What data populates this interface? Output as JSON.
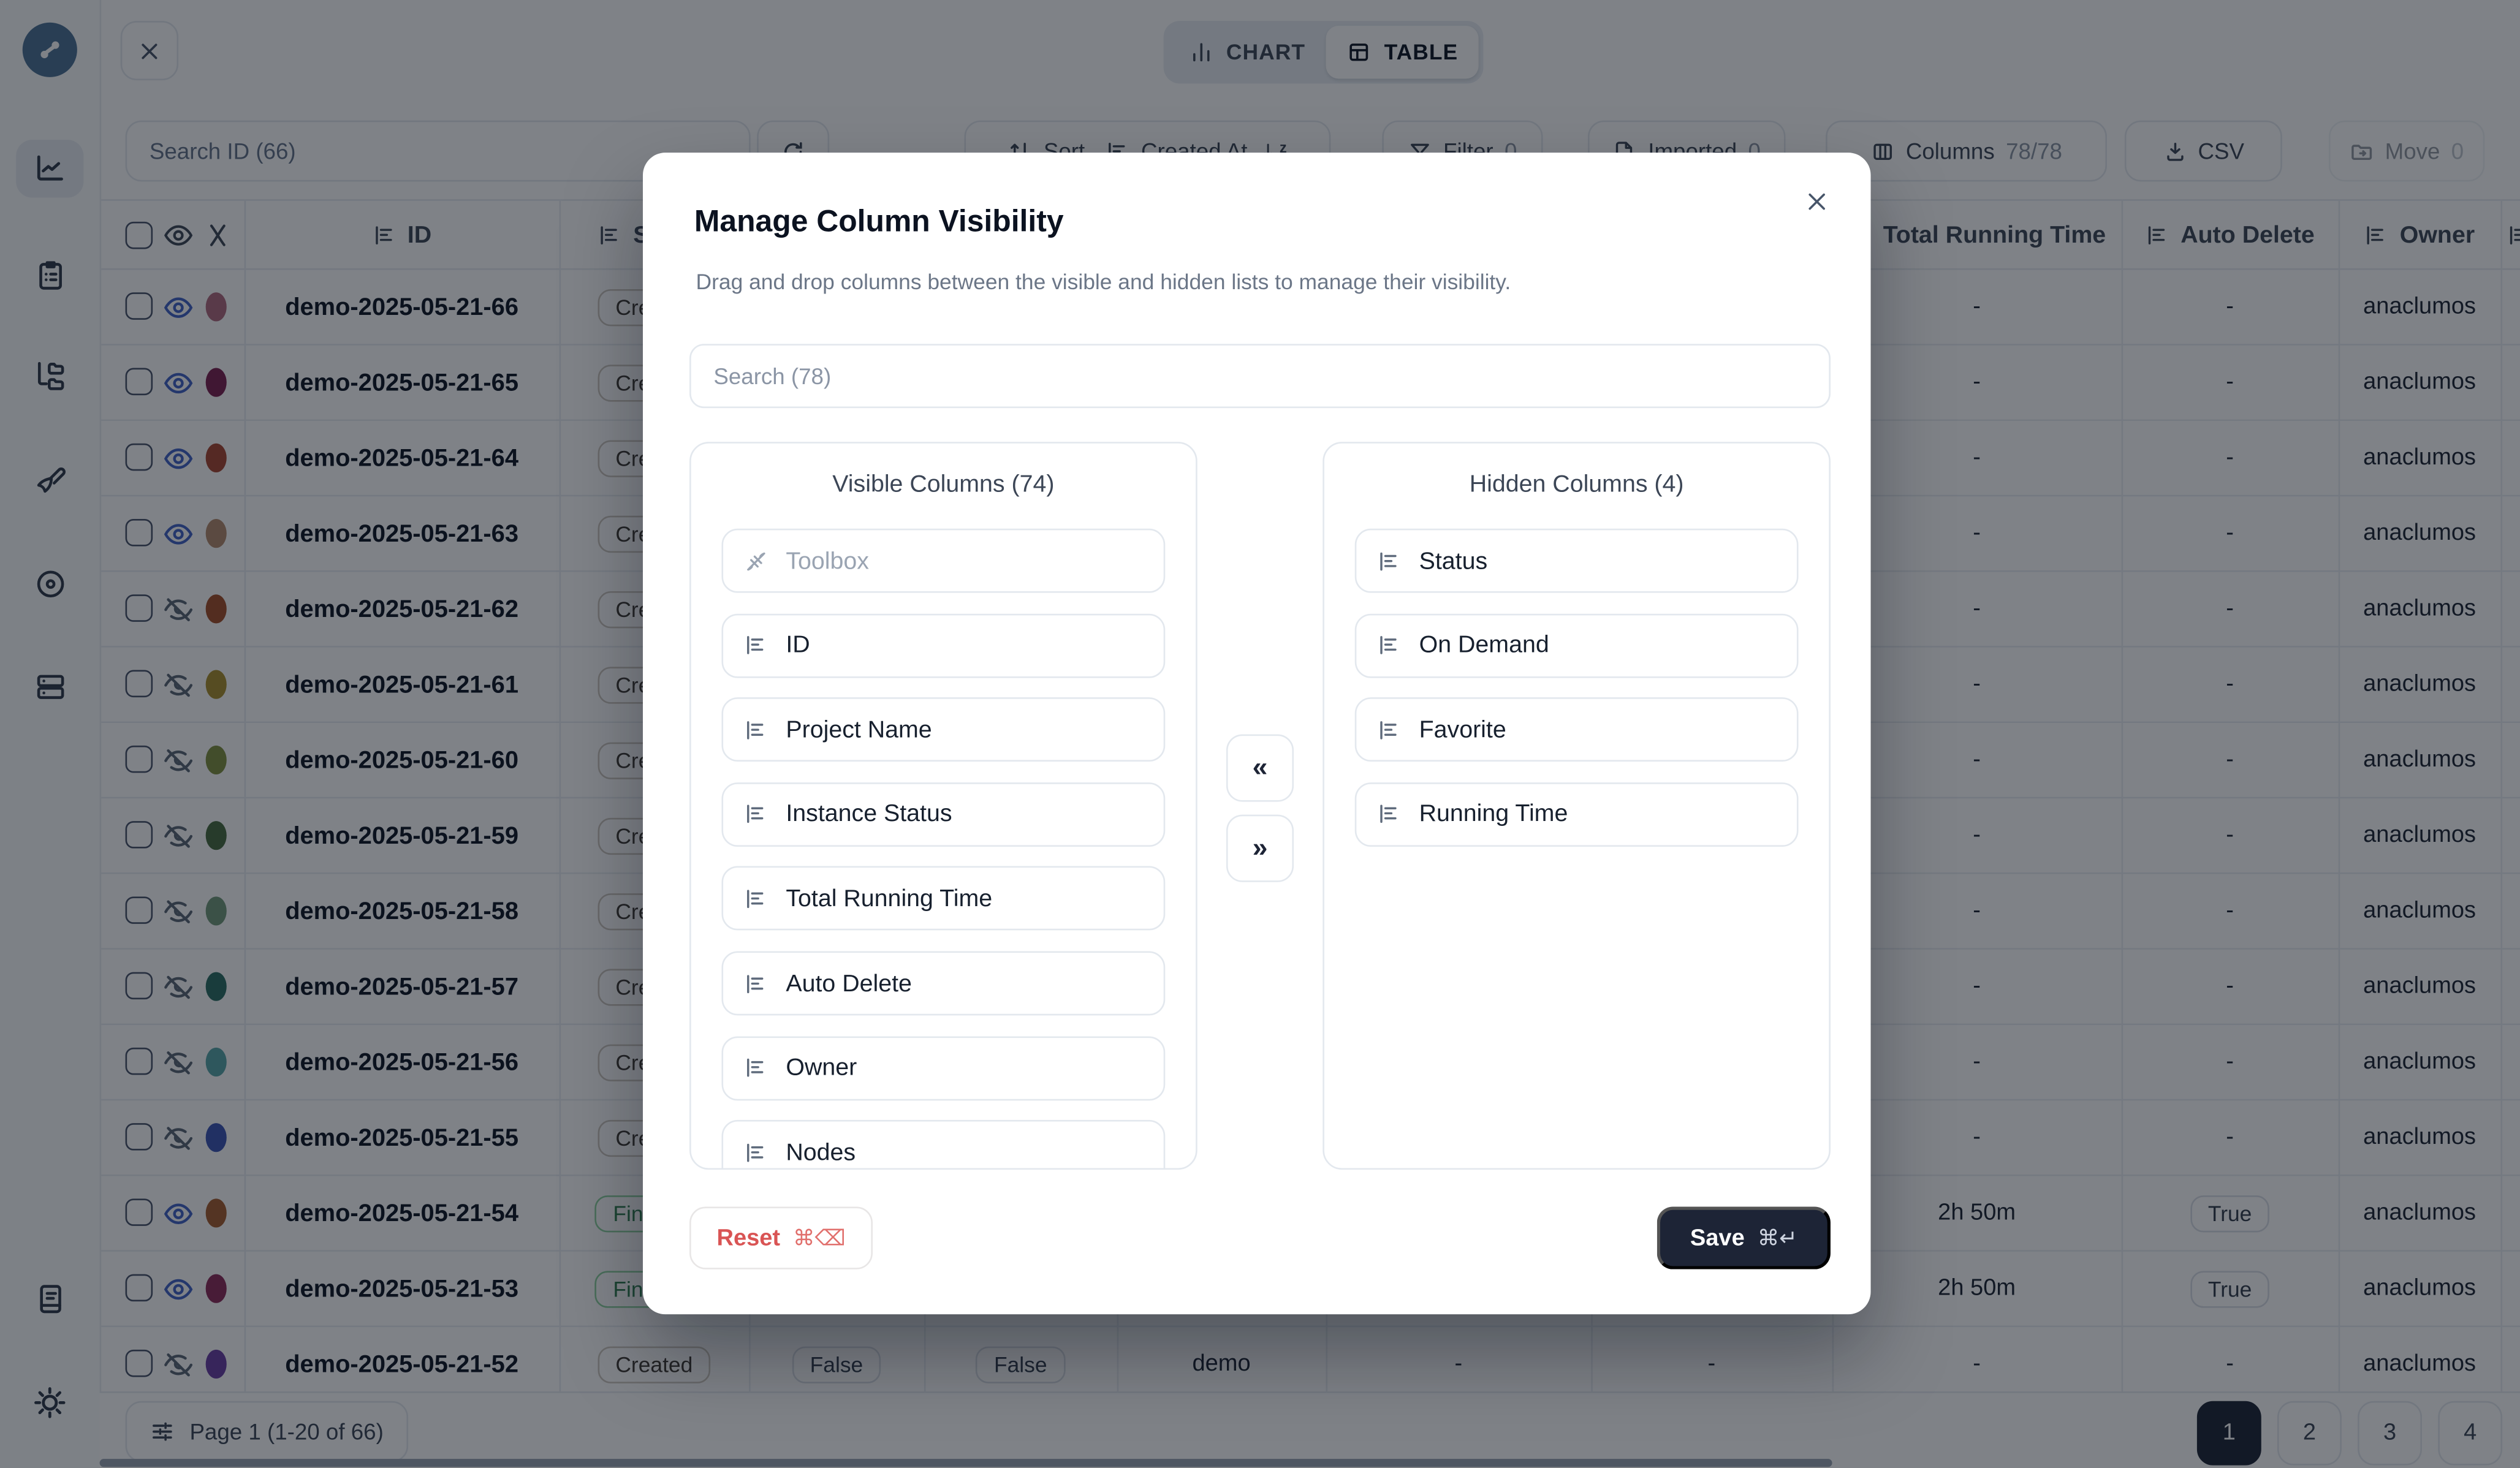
{
  "colors": {
    "accent_dark": "#1d2436",
    "eye_visible_blue": "#4263c7",
    "reset_red": "#d95454",
    "logo_blue": "#4b7295"
  },
  "sidebar": {
    "items": [
      {
        "icon": "logo-icon"
      },
      {
        "icon": "chart-line-icon",
        "active": true
      },
      {
        "icon": "clipboard-list-icon"
      },
      {
        "icon": "folder-tree-icon"
      },
      {
        "icon": "paintbrush-icon"
      },
      {
        "icon": "disc-icon"
      },
      {
        "icon": "server-stack-icon"
      },
      {
        "icon": "book-icon"
      },
      {
        "icon": "gear-icon"
      }
    ]
  },
  "view_toggle": {
    "chart_label": "CHART",
    "table_label": "TABLE",
    "selected": "TABLE"
  },
  "toolbar": {
    "search_placeholder": "Search ID (66)",
    "sort_label": "Sort",
    "sort_field": "Created At",
    "sort_direction_letter": "z",
    "filter_label": "Filter",
    "filter_count": "0",
    "imported_label": "Imported",
    "imported_count": "0",
    "columns_label": "Columns",
    "columns_count": "78/78",
    "csv_label": "CSV",
    "move_label": "Move",
    "move_count": "0"
  },
  "table": {
    "headers": {
      "id": "ID",
      "status": "Status",
      "total_running_time": "Total Running Time",
      "auto_delete": "Auto Delete",
      "owner": "Owner"
    },
    "rows": [
      {
        "id": "demo-2025-05-21-66",
        "eye": "on",
        "dot": "#b06a7e",
        "status": "Created",
        "trt": "-",
        "auto_delete": "-",
        "owner": "anaclumos"
      },
      {
        "id": "demo-2025-05-21-65",
        "eye": "on",
        "dot": "#7b2150",
        "status": "Created",
        "trt": "-",
        "auto_delete": "-",
        "owner": "anaclumos"
      },
      {
        "id": "demo-2025-05-21-64",
        "eye": "on",
        "dot": "#a84531",
        "status": "Created",
        "trt": "-",
        "auto_delete": "-",
        "owner": "anaclumos"
      },
      {
        "id": "demo-2025-05-21-63",
        "eye": "on",
        "dot": "#b38b6d",
        "status": "Created",
        "trt": "-",
        "auto_delete": "-",
        "owner": "anaclumos"
      },
      {
        "id": "demo-2025-05-21-62",
        "eye": "off",
        "dot": "#a34f28",
        "status": "Created",
        "trt": "-",
        "auto_delete": "-",
        "owner": "anaclumos"
      },
      {
        "id": "demo-2025-05-21-61",
        "eye": "off",
        "dot": "#a98f2d",
        "status": "Created",
        "trt": "-",
        "auto_delete": "-",
        "owner": "anaclumos"
      },
      {
        "id": "demo-2025-05-21-60",
        "eye": "off",
        "dot": "#7f9140",
        "status": "Created",
        "trt": "-",
        "auto_delete": "-",
        "owner": "anaclumos"
      },
      {
        "id": "demo-2025-05-21-59",
        "eye": "off",
        "dot": "#486b3f",
        "status": "Created",
        "trt": "-",
        "auto_delete": "-",
        "owner": "anaclumos"
      },
      {
        "id": "demo-2025-05-21-58",
        "eye": "off",
        "dot": "#719879",
        "status": "Created",
        "trt": "-",
        "auto_delete": "-",
        "owner": "anaclumos"
      },
      {
        "id": "demo-2025-05-21-57",
        "eye": "off",
        "dot": "#2a6e62",
        "status": "Created",
        "trt": "-",
        "auto_delete": "-",
        "owner": "anaclumos"
      },
      {
        "id": "demo-2025-05-21-56",
        "eye": "off",
        "dot": "#57a5a8",
        "status": "Created",
        "trt": "-",
        "auto_delete": "-",
        "owner": "anaclumos"
      },
      {
        "id": "demo-2025-05-21-55",
        "eye": "off",
        "dot": "#3c55b4",
        "status": "Created",
        "trt": "-",
        "auto_delete": "-",
        "owner": "anaclumos"
      },
      {
        "id": "demo-2025-05-21-54",
        "eye": "on",
        "dot": "#a65d2e",
        "status": "Finished",
        "trt": "2h 50m",
        "auto_delete": "True",
        "owner": "anaclumos"
      },
      {
        "id": "demo-2025-05-21-53",
        "eye": "on",
        "dot": "#8c2a59",
        "status": "Finished",
        "trt": "2h 50m",
        "auto_delete": "True",
        "owner": "anaclumos"
      },
      {
        "id": "demo-2025-05-21-52",
        "eye": "off",
        "dot": "#6a3da3",
        "status": "Created",
        "trt": "-",
        "auto_delete": "-",
        "owner": "anaclumos",
        "mid_cells": [
          {
            "text": "False",
            "badge": true
          },
          {
            "text": "False",
            "badge": true
          },
          {
            "text": "demo"
          },
          {
            "text": "-"
          },
          {
            "text": "-"
          }
        ]
      }
    ]
  },
  "pagination": {
    "label": "Page 1 (1-20 of 66)",
    "pages": [
      "1",
      "2",
      "3",
      "4"
    ],
    "active_page": "1"
  },
  "modal": {
    "title": "Manage Column Visibility",
    "description": "Drag and drop columns between the visible and hidden lists to manage their visibility.",
    "search_placeholder": "Search (78)",
    "visible_title": "Visible Columns (74)",
    "hidden_title": "Hidden Columns (4)",
    "visible_items": [
      {
        "label": "Toolbox",
        "disabled": true,
        "icon": "unplug-icon"
      },
      {
        "label": "ID"
      },
      {
        "label": "Project Name"
      },
      {
        "label": "Instance Status"
      },
      {
        "label": "Total Running Time"
      },
      {
        "label": "Auto Delete"
      },
      {
        "label": "Owner"
      },
      {
        "label": "Nodes"
      }
    ],
    "hidden_items": [
      {
        "label": "Status"
      },
      {
        "label": "On Demand"
      },
      {
        "label": "Favorite"
      },
      {
        "label": "Running Time"
      }
    ],
    "move_to_visible_label": "«",
    "move_to_hidden_label": "»",
    "reset_label": "Reset",
    "reset_shortcut": "⌘⌫",
    "save_label": "Save",
    "save_shortcut": "⌘↵"
  }
}
